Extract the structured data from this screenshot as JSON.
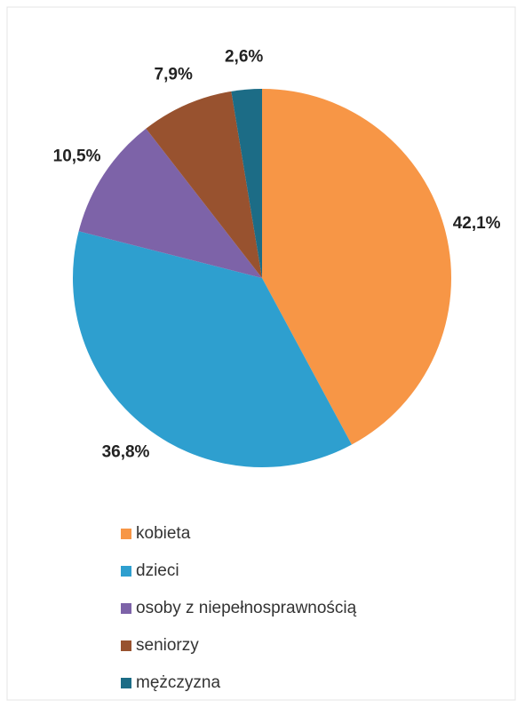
{
  "chart_data": {
    "type": "pie",
    "categories": [
      "kobieta",
      "dzieci",
      "osoby z niepełnosprawnością",
      "seniorzy",
      "mężczyzna"
    ],
    "values": [
      42.1,
      36.8,
      10.5,
      7.9,
      2.6
    ],
    "value_labels": [
      "42,1%",
      "36,8%",
      "10,5%",
      "7,9%",
      "2,6%"
    ],
    "colors": [
      "#f79646",
      "#2e9fcf",
      "#7d63a8",
      "#98522f",
      "#1c6c86"
    ],
    "legend": "bottom"
  }
}
